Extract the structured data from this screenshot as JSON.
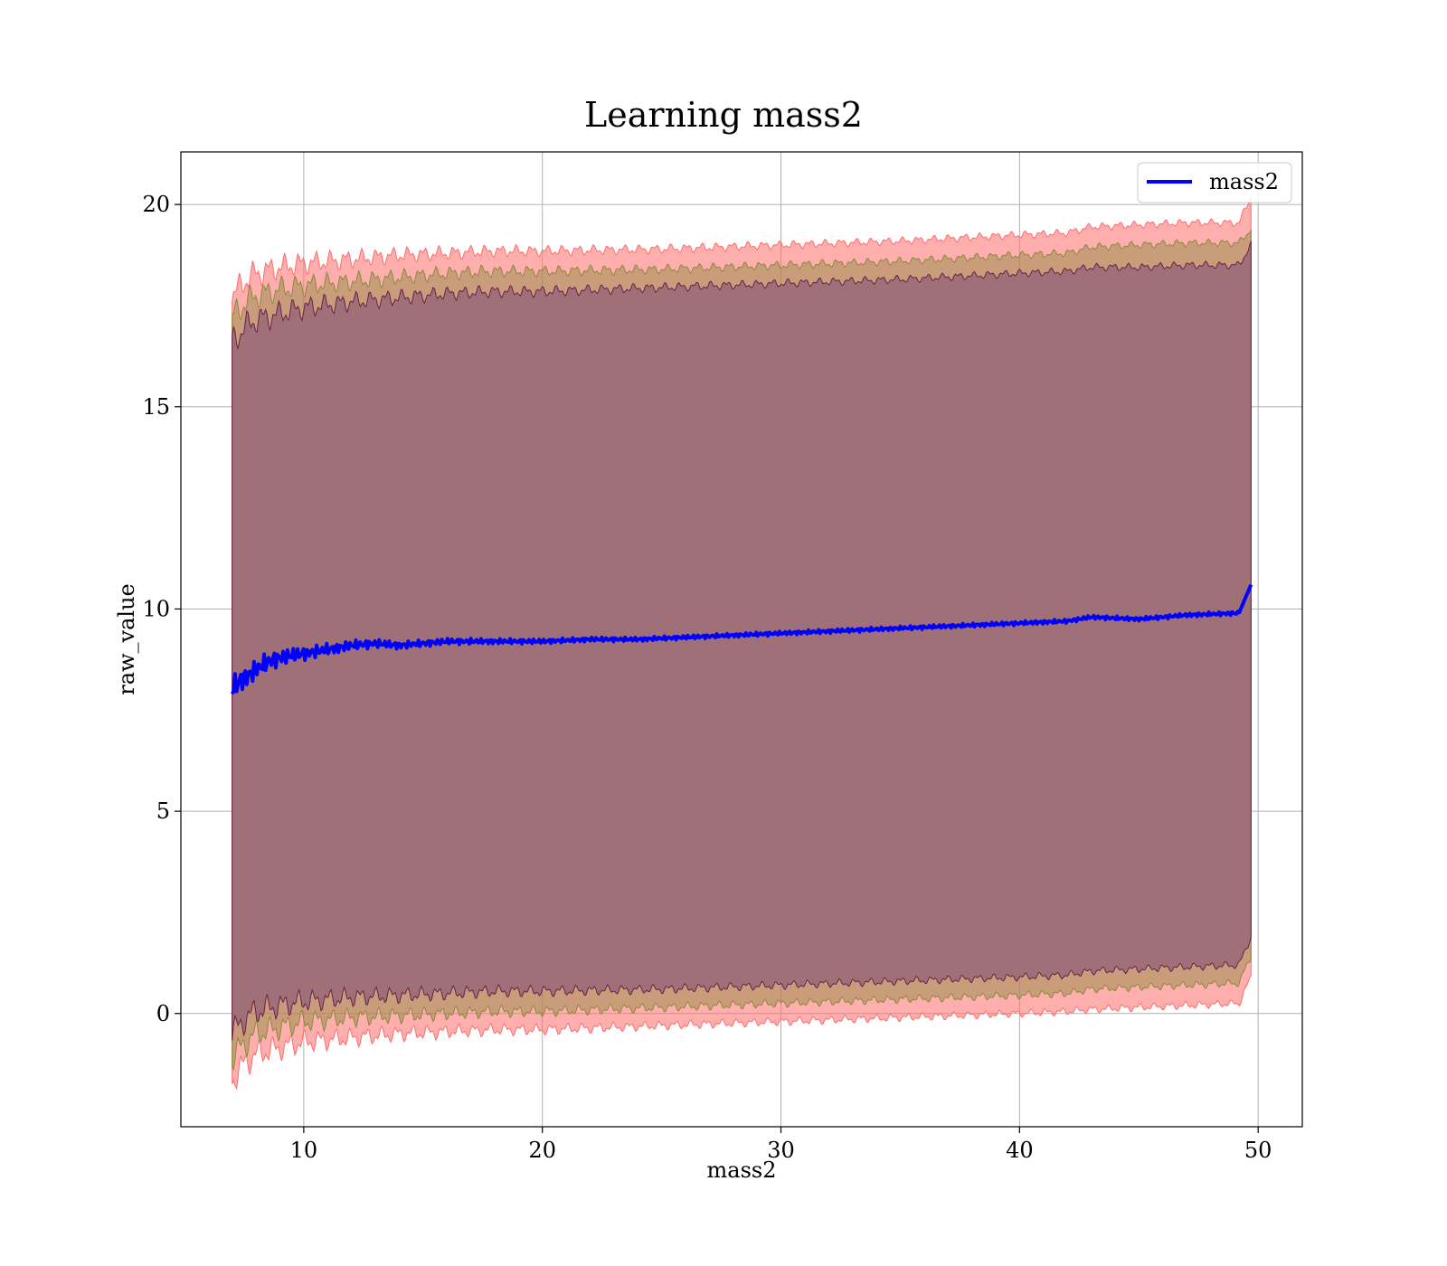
{
  "chart_data": {
    "type": "area",
    "title": "Learning mass2",
    "xlabel": "mass2",
    "ylabel": "raw_value",
    "xlim": [
      4.85,
      51.85
    ],
    "ylim": [
      -2.8,
      21.3
    ],
    "xticks": [
      10,
      20,
      30,
      40,
      50
    ],
    "yticks": [
      0,
      5,
      10,
      15,
      20
    ],
    "grid": true,
    "legend": {
      "placement": "top-right",
      "entries": [
        "mass2"
      ]
    },
    "colors": {
      "line": "#0000ff",
      "outer_band": "#ff6b6b",
      "mid_band": "#8a8a3c",
      "inner_band": "#6a1f4a",
      "inner_fill": "#a07078"
    },
    "series": [
      {
        "name": "mass2",
        "x": [
          7.0,
          7.5,
          8.0,
          8.5,
          9.0,
          10.0,
          11.0,
          12.0,
          13.0,
          14.0,
          15.0,
          16.0,
          17.0,
          18.0,
          19.0,
          20.0,
          22.0,
          24.0,
          26.0,
          28.0,
          30.0,
          32.0,
          34.0,
          36.0,
          38.0,
          40.0,
          42.0,
          43.0,
          45.0,
          47.0,
          49.2,
          49.7
        ],
        "y": [
          8.05,
          8.3,
          8.5,
          8.7,
          8.8,
          8.9,
          9.0,
          9.1,
          9.15,
          9.1,
          9.15,
          9.2,
          9.2,
          9.2,
          9.2,
          9.2,
          9.25,
          9.25,
          9.3,
          9.35,
          9.4,
          9.45,
          9.5,
          9.55,
          9.6,
          9.65,
          9.7,
          9.8,
          9.75,
          9.85,
          9.9,
          10.6
        ]
      }
    ],
    "bands": [
      {
        "x": [
          7.0,
          7.5,
          8.0,
          9.0,
          10.0,
          12.0,
          14.0,
          16.0,
          18.0,
          20.0,
          25.0,
          30.0,
          35.0,
          40.0,
          42.0,
          43.0,
          45.0,
          47.0,
          49.2,
          49.7
        ],
        "outer_upper": [
          17.7,
          18.1,
          18.3,
          18.45,
          18.55,
          18.65,
          18.75,
          18.8,
          18.85,
          18.85,
          18.9,
          19.0,
          19.1,
          19.25,
          19.3,
          19.45,
          19.5,
          19.55,
          19.55,
          20.2
        ],
        "mid_upper": [
          17.2,
          17.55,
          17.75,
          17.9,
          18.0,
          18.1,
          18.2,
          18.3,
          18.35,
          18.35,
          18.4,
          18.5,
          18.6,
          18.75,
          18.8,
          18.95,
          19.0,
          19.05,
          19.05,
          19.4
        ],
        "inner_upper": [
          16.6,
          16.95,
          17.15,
          17.3,
          17.45,
          17.6,
          17.7,
          17.8,
          17.85,
          17.85,
          17.95,
          18.05,
          18.15,
          18.3,
          18.35,
          18.45,
          18.45,
          18.5,
          18.5,
          19.0
        ],
        "inner_lower": [
          -0.5,
          -0.15,
          0.05,
          0.2,
          0.3,
          0.4,
          0.45,
          0.5,
          0.55,
          0.55,
          0.6,
          0.7,
          0.8,
          0.9,
          0.95,
          1.05,
          1.1,
          1.15,
          1.2,
          1.9
        ],
        "mid_lower": [
          -1.1,
          -0.75,
          -0.5,
          -0.35,
          -0.2,
          -0.1,
          -0.05,
          0.0,
          0.05,
          0.05,
          0.15,
          0.25,
          0.35,
          0.45,
          0.5,
          0.6,
          0.65,
          0.7,
          0.75,
          1.4
        ],
        "outer_lower": [
          -1.65,
          -1.25,
          -1.0,
          -0.85,
          -0.7,
          -0.6,
          -0.5,
          -0.45,
          -0.4,
          -0.4,
          -0.3,
          -0.2,
          -0.1,
          0.0,
          0.05,
          0.1,
          0.15,
          0.2,
          0.25,
          0.9
        ]
      }
    ]
  }
}
